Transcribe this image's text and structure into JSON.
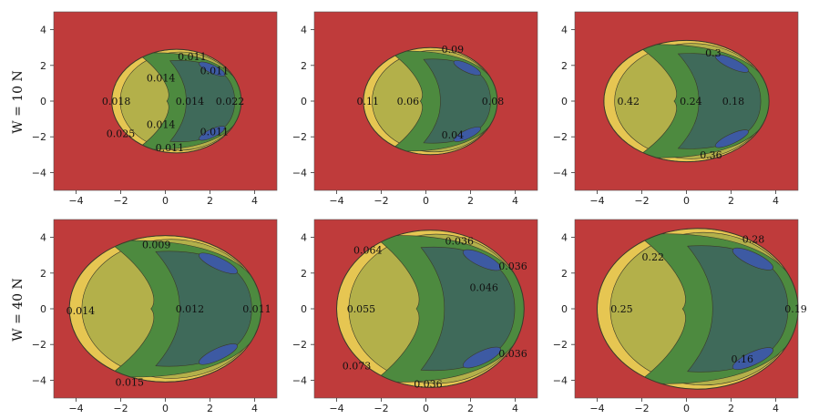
{
  "figure": {
    "row_labels": [
      "W = 10 N",
      "W = 40 N"
    ]
  },
  "colors": {
    "background": "#bf3b3b",
    "level_1": "#e6c652",
    "level_2": "#b3b04a",
    "level_3": "#4d8a3f",
    "level_4": "#3f6a5a",
    "level_5": "#3d5aa3",
    "edge": "#3a3a2a"
  },
  "chart_data": [
    {
      "type": "contour",
      "row": 0,
      "col": 0,
      "row_label": "W = 10 N",
      "xlim": [
        -5,
        5
      ],
      "ylim": [
        -5,
        5
      ],
      "xticks": [
        -4,
        -2,
        0,
        2,
        4
      ],
      "yticks": [
        -4,
        -2,
        0,
        2,
        4
      ],
      "boundary": {
        "cx": 0.5,
        "cy": 0,
        "rx": 2.9,
        "ry": 2.9
      },
      "contour_labels": [
        {
          "text": "0.011",
          "x": 1.2,
          "y": 2.5
        },
        {
          "text": "0.011",
          "x": 2.2,
          "y": 1.7
        },
        {
          "text": "0.014",
          "x": -0.2,
          "y": 1.3
        },
        {
          "text": "0.018",
          "x": -2.2,
          "y": 0
        },
        {
          "text": "0.014",
          "x": 1.1,
          "y": 0
        },
        {
          "text": "0.022",
          "x": 2.9,
          "y": 0
        },
        {
          "text": "0.014",
          "x": -0.2,
          "y": -1.3
        },
        {
          "text": "0.025",
          "x": -2.0,
          "y": -1.8
        },
        {
          "text": "0.011",
          "x": 2.2,
          "y": -1.7
        },
        {
          "text": "0.011",
          "x": 0.2,
          "y": -2.6
        }
      ]
    },
    {
      "type": "contour",
      "row": 0,
      "col": 1,
      "xlim": [
        -5,
        5
      ],
      "ylim": [
        -5,
        5
      ],
      "xticks": [
        -4,
        -2,
        0,
        2,
        4
      ],
      "yticks": [
        -4,
        -2,
        0,
        2,
        4
      ],
      "boundary": {
        "cx": 0.2,
        "cy": 0,
        "rx": 3.0,
        "ry": 3.0
      },
      "contour_labels": [
        {
          "text": "0.09",
          "x": 1.2,
          "y": 2.9
        },
        {
          "text": "0.11",
          "x": -2.6,
          "y": 0
        },
        {
          "text": "0.06",
          "x": -0.8,
          "y": 0
        },
        {
          "text": "0.08",
          "x": 3.0,
          "y": 0
        },
        {
          "text": "0.04",
          "x": 1.2,
          "y": -1.9
        }
      ]
    },
    {
      "type": "contour",
      "row": 0,
      "col": 2,
      "xlim": [
        -5,
        5
      ],
      "ylim": [
        -5,
        5
      ],
      "xticks": [
        -4,
        -2,
        0,
        2,
        4
      ],
      "yticks": [
        -4,
        -2,
        0,
        2,
        4
      ],
      "boundary": {
        "cx": 0,
        "cy": 0,
        "rx": 3.7,
        "ry": 3.4
      },
      "contour_labels": [
        {
          "text": "0.3",
          "x": 1.2,
          "y": 2.7
        },
        {
          "text": "0.42",
          "x": -2.6,
          "y": 0
        },
        {
          "text": "0.24",
          "x": 0.2,
          "y": 0
        },
        {
          "text": "0.18",
          "x": 2.1,
          "y": 0
        },
        {
          "text": "0.36",
          "x": 1.1,
          "y": -3.0
        }
      ]
    },
    {
      "type": "contour",
      "row": 1,
      "col": 0,
      "row_label": "W = 40 N",
      "xlim": [
        -5,
        5
      ],
      "ylim": [
        -5,
        5
      ],
      "xticks": [
        -4,
        -2,
        0,
        2,
        4
      ],
      "yticks": [
        -4,
        -2,
        0,
        2,
        4
      ],
      "boundary": {
        "cx": 0,
        "cy": 0,
        "rx": 4.3,
        "ry": 4.1
      },
      "contour_labels": [
        {
          "text": "0.009",
          "x": -0.4,
          "y": 3.6
        },
        {
          "text": "0.014",
          "x": -3.8,
          "y": -0.1
        },
        {
          "text": "0.012",
          "x": 1.1,
          "y": 0
        },
        {
          "text": "0.011",
          "x": 4.1,
          "y": 0
        },
        {
          "text": "0.015",
          "x": -1.6,
          "y": -4.1
        }
      ]
    },
    {
      "type": "contour",
      "row": 1,
      "col": 1,
      "xlim": [
        -5,
        5
      ],
      "ylim": [
        -5,
        5
      ],
      "xticks": [
        -4,
        -2,
        0,
        2,
        4
      ],
      "yticks": [
        -4,
        -2,
        0,
        2,
        4
      ],
      "boundary": {
        "cx": 0.2,
        "cy": 0,
        "rx": 4.2,
        "ry": 4.4
      },
      "contour_labels": [
        {
          "text": "0.064",
          "x": -2.6,
          "y": 3.3
        },
        {
          "text": "0.036",
          "x": 1.5,
          "y": 3.8
        },
        {
          "text": "0.036",
          "x": 3.9,
          "y": 2.4
        },
        {
          "text": "0.046",
          "x": 2.6,
          "y": 1.2
        },
        {
          "text": "0.055",
          "x": -2.9,
          "y": 0
        },
        {
          "text": "0.036",
          "x": 3.9,
          "y": -2.5
        },
        {
          "text": "0.073",
          "x": -3.1,
          "y": -3.2
        },
        {
          "text": "0.036",
          "x": 0.1,
          "y": -4.2
        }
      ]
    },
    {
      "type": "contour",
      "row": 1,
      "col": 2,
      "xlim": [
        -5,
        5
      ],
      "ylim": [
        -5,
        5
      ],
      "xticks": [
        -4,
        -2,
        0,
        2,
        4
      ],
      "yticks": [
        -4,
        -2,
        0,
        2,
        4
      ],
      "boundary": {
        "cx": 0.5,
        "cy": 0,
        "rx": 4.5,
        "ry": 4.5
      },
      "contour_labels": [
        {
          "text": "0.28",
          "x": 3.0,
          "y": 3.9
        },
        {
          "text": "0.22",
          "x": -1.5,
          "y": 2.9
        },
        {
          "text": "0.25",
          "x": -2.9,
          "y": 0
        },
        {
          "text": "0.19",
          "x": 4.9,
          "y": 0
        },
        {
          "text": "0.16",
          "x": 2.5,
          "y": -2.8
        }
      ]
    }
  ]
}
